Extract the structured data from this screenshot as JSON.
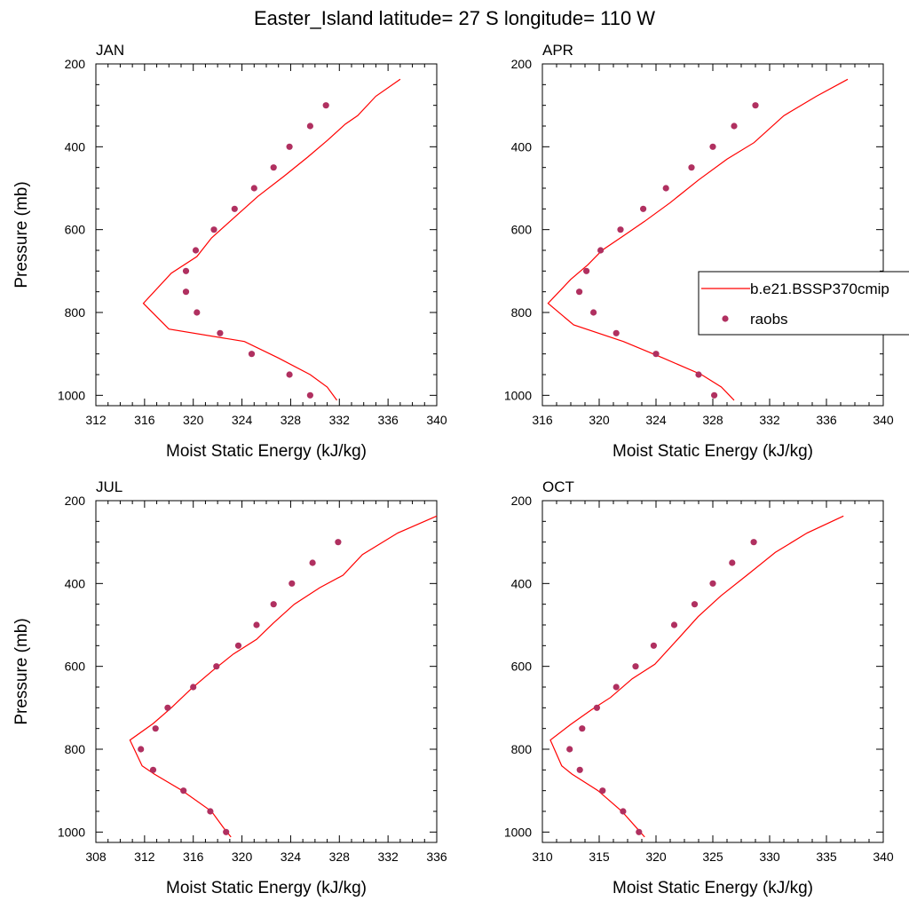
{
  "title": "Easter_Island  latitude= 27 S longitude= 110 W",
  "colors": {
    "model_line": "#ff0000",
    "raobs_marker": "#b03060",
    "axis": "#000000"
  },
  "legend": {
    "placement": "right-middle of APR panel",
    "entries": [
      {
        "label": "b.e21.BSSP370cmip",
        "style": "line"
      },
      {
        "label": "raobs",
        "style": "marker"
      }
    ]
  },
  "chart_data": [
    {
      "type": "line+scatter",
      "panel_label": "JAN",
      "xlabel": "Moist Static Energy (kJ/kg)",
      "ylabel": "Pressure (mb)",
      "xlim": [
        312,
        340
      ],
      "ylim": [
        1025,
        200
      ],
      "x_ticks": [
        "312",
        "316",
        "320",
        "324",
        "328",
        "332",
        "336",
        "340"
      ],
      "y_ticks": [
        "200",
        "400",
        "600",
        "800",
        "1000"
      ],
      "series": [
        {
          "name": "b.e21.BSSP370cmip",
          "kind": "line",
          "points": [
            [
              331.8,
              1012
            ],
            [
              331.0,
              980
            ],
            [
              329.6,
              950
            ],
            [
              327.0,
              910
            ],
            [
              324.2,
              870
            ],
            [
              318.0,
              840
            ],
            [
              315.9,
              778
            ],
            [
              318.2,
              705
            ],
            [
              320.3,
              665
            ],
            [
              321.5,
              620
            ],
            [
              323.4,
              570
            ],
            [
              325.3,
              520
            ],
            [
              327.5,
              470
            ],
            [
              329.4,
              425
            ],
            [
              331.0,
              385
            ],
            [
              332.5,
              345
            ],
            [
              333.5,
              325
            ],
            [
              335.0,
              278
            ],
            [
              337.0,
              237
            ]
          ]
        },
        {
          "name": "raobs",
          "kind": "scatter",
          "points": [
            [
              329.6,
              1000
            ],
            [
              327.9,
              950
            ],
            [
              324.8,
              900
            ],
            [
              322.2,
              850
            ],
            [
              320.3,
              800
            ],
            [
              319.4,
              750
            ],
            [
              319.4,
              700
            ],
            [
              320.2,
              650
            ],
            [
              321.7,
              600
            ],
            [
              323.4,
              550
            ],
            [
              325.0,
              500
            ],
            [
              326.6,
              450
            ],
            [
              327.9,
              400
            ],
            [
              329.6,
              350
            ],
            [
              330.9,
              300
            ]
          ]
        }
      ]
    },
    {
      "type": "line+scatter",
      "panel_label": "APR",
      "xlabel": "Moist Static Energy (kJ/kg)",
      "ylabel": "",
      "xlim": [
        316,
        340
      ],
      "ylim": [
        1025,
        200
      ],
      "x_ticks": [
        "316",
        "320",
        "324",
        "328",
        "332",
        "336",
        "340"
      ],
      "y_ticks": [
        "200",
        "400",
        "600",
        "800",
        "1000"
      ],
      "series": [
        {
          "name": "b.e21.BSSP370cmip",
          "kind": "line",
          "points": [
            [
              329.5,
              1012
            ],
            [
              328.6,
              980
            ],
            [
              327.2,
              950
            ],
            [
              324.5,
              910
            ],
            [
              321.7,
              870
            ],
            [
              318.2,
              830
            ],
            [
              316.4,
              778
            ],
            [
              318.0,
              720
            ],
            [
              319.2,
              685
            ],
            [
              320.2,
              650
            ],
            [
              321.7,
              615
            ],
            [
              323.2,
              580
            ],
            [
              325.0,
              535
            ],
            [
              327.0,
              480
            ],
            [
              329.0,
              430
            ],
            [
              330.9,
              390
            ],
            [
              333.0,
              325
            ],
            [
              335.3,
              278
            ],
            [
              337.5,
              237
            ]
          ]
        },
        {
          "name": "raobs",
          "kind": "scatter",
          "points": [
            [
              328.1,
              1000
            ],
            [
              327.0,
              950
            ],
            [
              324.0,
              900
            ],
            [
              321.2,
              850
            ],
            [
              319.6,
              800
            ],
            [
              318.6,
              750
            ],
            [
              319.1,
              700
            ],
            [
              320.1,
              650
            ],
            [
              321.5,
              600
            ],
            [
              323.1,
              550
            ],
            [
              324.7,
              500
            ],
            [
              326.5,
              450
            ],
            [
              328.0,
              400
            ],
            [
              329.5,
              350
            ],
            [
              331.0,
              300
            ]
          ]
        }
      ]
    },
    {
      "type": "line+scatter",
      "panel_label": "JUL",
      "xlabel": "Moist Static Energy (kJ/kg)",
      "ylabel": "Pressure (mb)",
      "xlim": [
        308,
        336
      ],
      "ylim": [
        1025,
        200
      ],
      "x_ticks": [
        "308",
        "312",
        "316",
        "320",
        "324",
        "328",
        "332",
        "336"
      ],
      "y_ticks": [
        "200",
        "400",
        "600",
        "800",
        "1000"
      ],
      "series": [
        {
          "name": "b.e21.BSSP370cmip",
          "kind": "line",
          "points": [
            [
              319.1,
              1012
            ],
            [
              318.5,
              990
            ],
            [
              317.5,
              950
            ],
            [
              315.1,
              900
            ],
            [
              312.8,
              860
            ],
            [
              311.8,
              840
            ],
            [
              310.8,
              778
            ],
            [
              312.7,
              738
            ],
            [
              314.2,
              700
            ],
            [
              315.8,
              655
            ],
            [
              317.6,
              610
            ],
            [
              319.3,
              570
            ],
            [
              321.2,
              535
            ],
            [
              322.6,
              495
            ],
            [
              324.3,
              450
            ],
            [
              326.4,
              410
            ],
            [
              328.3,
              380
            ],
            [
              329.9,
              330
            ],
            [
              332.8,
              278
            ],
            [
              336.0,
              237
            ]
          ]
        },
        {
          "name": "raobs",
          "kind": "scatter",
          "points": [
            [
              318.7,
              1000
            ],
            [
              317.4,
              950
            ],
            [
              315.2,
              900
            ],
            [
              312.7,
              850
            ],
            [
              311.7,
              800
            ],
            [
              312.9,
              750
            ],
            [
              313.9,
              700
            ],
            [
              316.0,
              650
            ],
            [
              317.9,
              600
            ],
            [
              319.7,
              550
            ],
            [
              321.2,
              500
            ],
            [
              322.6,
              450
            ],
            [
              324.1,
              400
            ],
            [
              325.8,
              350
            ],
            [
              327.9,
              300
            ]
          ]
        }
      ]
    },
    {
      "type": "line+scatter",
      "panel_label": "OCT",
      "xlabel": "Moist Static Energy (kJ/kg)",
      "ylabel": "",
      "xlim": [
        310,
        340
      ],
      "ylim": [
        1025,
        200
      ],
      "x_ticks": [
        "310",
        "315",
        "320",
        "325",
        "330",
        "335",
        "340"
      ],
      "y_ticks": [
        "200",
        "400",
        "600",
        "800",
        "1000"
      ],
      "series": [
        {
          "name": "b.e21.BSSP370cmip",
          "kind": "line",
          "points": [
            [
              319.0,
              1012
            ],
            [
              318.3,
              990
            ],
            [
              317.0,
              950
            ],
            [
              314.9,
              900
            ],
            [
              312.6,
              860
            ],
            [
              311.7,
              840
            ],
            [
              310.7,
              778
            ],
            [
              312.5,
              740
            ],
            [
              314.3,
              705
            ],
            [
              316.0,
              675
            ],
            [
              317.9,
              630
            ],
            [
              319.9,
              595
            ],
            [
              321.9,
              535
            ],
            [
              323.7,
              480
            ],
            [
              325.7,
              430
            ],
            [
              328.0,
              380
            ],
            [
              330.5,
              325
            ],
            [
              333.3,
              278
            ],
            [
              336.5,
              237
            ]
          ]
        },
        {
          "name": "raobs",
          "kind": "scatter",
          "points": [
            [
              318.5,
              1000
            ],
            [
              317.1,
              950
            ],
            [
              315.3,
              900
            ],
            [
              313.3,
              850
            ],
            [
              312.4,
              800
            ],
            [
              313.5,
              750
            ],
            [
              314.8,
              700
            ],
            [
              316.5,
              650
            ],
            [
              318.2,
              600
            ],
            [
              319.8,
              550
            ],
            [
              321.6,
              500
            ],
            [
              323.4,
              450
            ],
            [
              325.0,
              400
            ],
            [
              326.7,
              350
            ],
            [
              328.6,
              300
            ]
          ]
        }
      ]
    }
  ]
}
